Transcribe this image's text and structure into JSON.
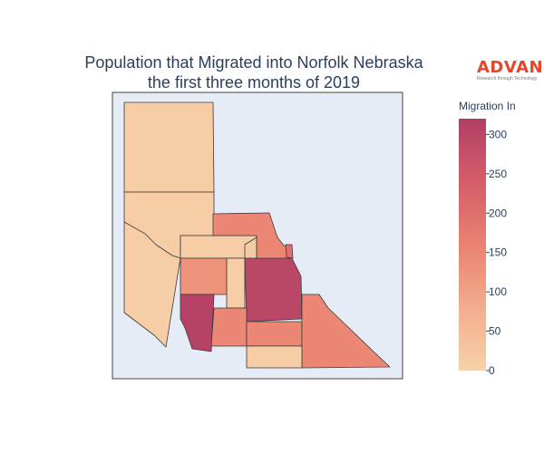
{
  "title_line1": "Population that Migrated into Norfolk Nebraska",
  "title_line2": "the first three months of 2019",
  "logo": {
    "name": "ADVAN",
    "tagline": "Research through Technology",
    "color": "#e8442a"
  },
  "colorbar": {
    "title": "Migration In",
    "min": 0,
    "max": 320,
    "ticks": [
      0,
      50,
      100,
      150,
      200,
      250,
      300
    ],
    "colorscale": [
      "#f6d2a9",
      "#f3ad8c",
      "#ea8171",
      "#d55d6a",
      "#b13f64"
    ]
  },
  "map": {
    "background": "#e5ecf6",
    "border": "#444444"
  },
  "chart_data": {
    "type": "choropleth",
    "value_field": "Migration In",
    "regions": [
      {
        "id": "r1",
        "value": 10
      },
      {
        "id": "r2",
        "value": 10
      },
      {
        "id": "r3",
        "value": 10
      },
      {
        "id": "r4",
        "value": 150
      },
      {
        "id": "r5",
        "value": 15
      },
      {
        "id": "r6",
        "value": 130
      },
      {
        "id": "r7",
        "value": 10
      },
      {
        "id": "r8",
        "value": 310
      },
      {
        "id": "r9",
        "value": 300
      },
      {
        "id": "r10",
        "value": 150
      },
      {
        "id": "r11",
        "value": 150
      },
      {
        "id": "r12",
        "value": 150
      },
      {
        "id": "r13",
        "value": 10
      },
      {
        "id": "r14",
        "value": 200
      }
    ]
  }
}
